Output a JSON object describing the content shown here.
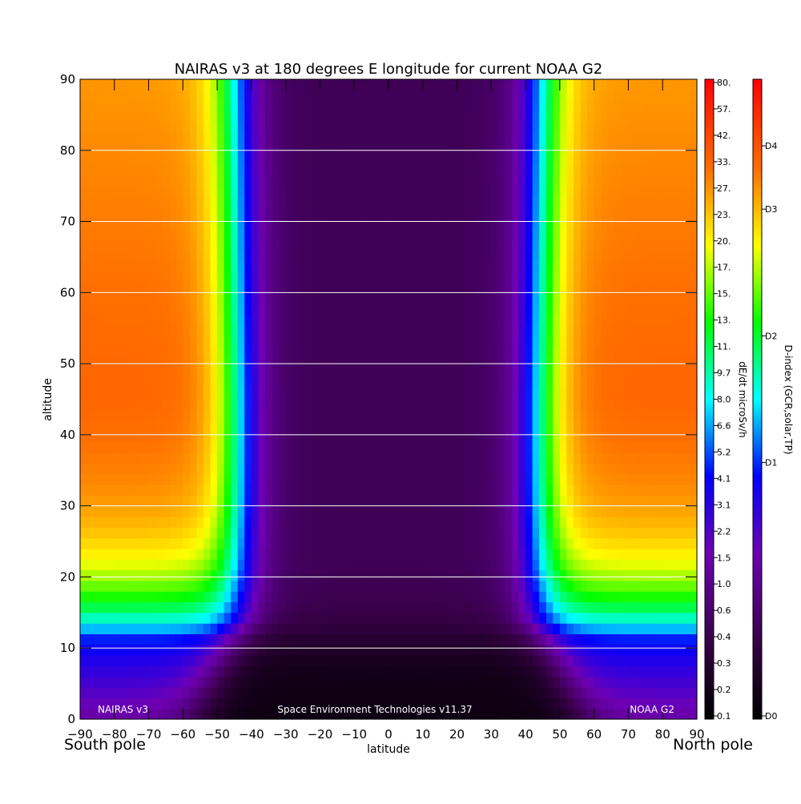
{
  "chart_data": {
    "type": "heatmap",
    "title": "NAIRAS v3 at 180 degrees E longitude for current NOAA G2",
    "xlabel": "latitude",
    "ylabel": "altitude",
    "x_ticks": [
      "-90",
      "-80",
      "-70",
      "-60",
      "-50",
      "-40",
      "-30",
      "-20",
      "-10",
      "0",
      "10",
      "20",
      "30",
      "40",
      "50",
      "60",
      "70",
      "80",
      "90"
    ],
    "y_ticks": [
      "0",
      "10",
      "20",
      "30",
      "40",
      "50",
      "60",
      "70",
      "80",
      "90"
    ],
    "xlim": [
      -90,
      90
    ],
    "ylim": [
      0,
      90
    ],
    "x_edge_left": "South pole",
    "x_edge_right": "North pole",
    "gridlines_y": [
      10,
      20,
      30,
      40,
      50,
      60,
      70,
      80
    ],
    "footer_left": "NAIRAS v3",
    "footer_center": "Space Environment Technologies v11.37",
    "footer_right": "NOAA G2",
    "colorbar_dose": {
      "label": "dE/dt microSv/h",
      "ticks": [
        "0.1",
        "0.2",
        "0.3",
        "0.4",
        "0.6",
        "1.0",
        "1.5",
        "2.2",
        "3.1",
        "4.1",
        "5.2",
        "6.6",
        "8.0",
        "9.7",
        "11.",
        "13.",
        "15.",
        "17.",
        "20.",
        "23.",
        "27.",
        "33.",
        "42.",
        "57.",
        "80."
      ]
    },
    "colorbar_dindex": {
      "label": "D-index (GCR,solar,TP)",
      "ticks": [
        "D0",
        "D1",
        "D2",
        "D3",
        "D4"
      ],
      "tick_fractions": [
        0.0,
        0.4,
        0.6,
        0.8,
        0.9
      ]
    },
    "dose_model": {
      "description_levels": "value of colour scale position (0=dark purple/black, 1=red) vs latitude and altitude",
      "cutoff_latitude_high_alt": 43,
      "cutoff_latitude_low_alt": 57,
      "polar_level_high_alt": 0.88,
      "equator_level_high_alt": 0.14
    }
  }
}
